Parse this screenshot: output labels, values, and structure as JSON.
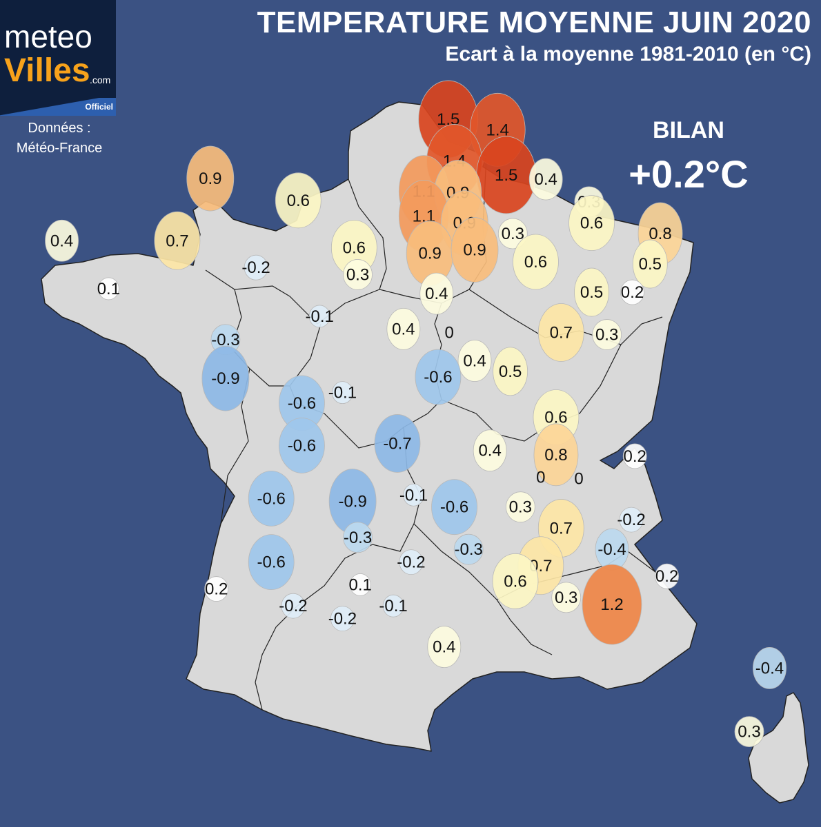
{
  "header": {
    "title": "TEMPERATURE MOYENNE JUIN 2020",
    "subtitle": "Ecart à la moyenne 1981-2010 (en °C)"
  },
  "logo": {
    "line1": "meteo",
    "line2": "Villes",
    "suffix": ".com",
    "badge": "Officiel"
  },
  "source": {
    "line1": "Données :",
    "line2": "Météo-France"
  },
  "summary": {
    "label": "BILAN",
    "value": "+0.2°C"
  },
  "colors": {
    "background": "#3b5283",
    "land": "#d9d9d9",
    "border": "#222222",
    "scale": [
      {
        "min": -1.0,
        "color": "#8db9e6"
      },
      {
        "min": -0.65,
        "color": "#9ec7ec"
      },
      {
        "min": -0.45,
        "color": "#bcd9ef"
      },
      {
        "min": -0.25,
        "color": "#e0eef8"
      },
      {
        "min": -0.05,
        "color": "#ffffff"
      },
      {
        "min": 0.25,
        "color": "#fdfce0"
      },
      {
        "min": 0.45,
        "color": "#fcf6c4"
      },
      {
        "min": 0.65,
        "color": "#fde6a6"
      },
      {
        "min": 0.75,
        "color": "#fcd597"
      },
      {
        "min": 0.85,
        "color": "#f9bd7c"
      },
      {
        "min": 1.05,
        "color": "#f39a5c"
      },
      {
        "min": 1.15,
        "color": "#ef8647"
      },
      {
        "min": 1.35,
        "color": "#e2572a"
      },
      {
        "min": 1.45,
        "color": "#d9441e"
      }
    ]
  },
  "stations": [
    {
      "lon": 3.08,
      "lat": 50.57,
      "value": 1.5
    },
    {
      "lon": 4.05,
      "lat": 50.42,
      "value": 1.4
    },
    {
      "lon": 3.2,
      "lat": 49.98,
      "value": 1.4
    },
    {
      "lon": 4.22,
      "lat": 49.78,
      "value": 1.5
    },
    {
      "lon": -1.6,
      "lat": 49.73,
      "value": 0.9
    },
    {
      "lon": 5.0,
      "lat": 49.72,
      "value": 0.4
    },
    {
      "lon": 2.6,
      "lat": 49.55,
      "value": 1.1
    },
    {
      "lon": 3.27,
      "lat": 49.53,
      "value": 0.9
    },
    {
      "lon": 0.13,
      "lat": 49.42,
      "value": 0.6
    },
    {
      "lon": 5.85,
      "lat": 49.4,
      "value": 0.3
    },
    {
      "lon": 2.6,
      "lat": 49.2,
      "value": 1.1
    },
    {
      "lon": 3.4,
      "lat": 49.1,
      "value": 0.9
    },
    {
      "lon": 5.9,
      "lat": 49.1,
      "value": 0.6
    },
    {
      "lon": -4.52,
      "lat": 48.85,
      "value": 0.4
    },
    {
      "lon": -2.25,
      "lat": 48.85,
      "value": 0.7
    },
    {
      "lon": 4.35,
      "lat": 48.95,
      "value": 0.3
    },
    {
      "lon": 7.25,
      "lat": 48.95,
      "value": 0.8
    },
    {
      "lon": 1.23,
      "lat": 48.75,
      "value": 0.6
    },
    {
      "lon": 2.72,
      "lat": 48.67,
      "value": 0.9
    },
    {
      "lon": 3.6,
      "lat": 48.72,
      "value": 0.9
    },
    {
      "lon": -0.7,
      "lat": 48.47,
      "value": -0.2
    },
    {
      "lon": 4.8,
      "lat": 48.55,
      "value": 0.6
    },
    {
      "lon": 7.05,
      "lat": 48.52,
      "value": 0.5
    },
    {
      "lon": 1.3,
      "lat": 48.37,
      "value": 0.3
    },
    {
      "lon": -3.6,
      "lat": 48.17,
      "value": 0.1
    },
    {
      "lon": 2.85,
      "lat": 48.1,
      "value": 0.4
    },
    {
      "lon": 5.9,
      "lat": 48.12,
      "value": 0.5
    },
    {
      "lon": 6.7,
      "lat": 48.12,
      "value": 0.2
    },
    {
      "lon": 0.55,
      "lat": 47.78,
      "value": -0.1
    },
    {
      "lon": 2.2,
      "lat": 47.6,
      "value": 0.4
    },
    {
      "lon": 5.3,
      "lat": 47.55,
      "value": 0.7
    },
    {
      "lon": 6.2,
      "lat": 47.52,
      "value": 0.3
    },
    {
      "lon": 3.1,
      "lat": 47.55,
      "value": 0.0
    },
    {
      "lon": -1.3,
      "lat": 47.45,
      "value": -0.3
    },
    {
      "lon": 3.6,
      "lat": 47.15,
      "value": 0.4
    },
    {
      "lon": 4.3,
      "lat": 47.0,
      "value": 0.5
    },
    {
      "lon": 2.88,
      "lat": 46.92,
      "value": -0.6
    },
    {
      "lon": -1.3,
      "lat": 46.9,
      "value": -0.9
    },
    {
      "lon": 1.0,
      "lat": 46.7,
      "value": -0.1
    },
    {
      "lon": 0.2,
      "lat": 46.55,
      "value": -0.6
    },
    {
      "lon": 5.2,
      "lat": 46.35,
      "value": 0.6
    },
    {
      "lon": 2.08,
      "lat": 45.98,
      "value": -0.7
    },
    {
      "lon": 3.9,
      "lat": 45.88,
      "value": 0.4
    },
    {
      "lon": 0.2,
      "lat": 45.95,
      "value": -0.6
    },
    {
      "lon": 5.2,
      "lat": 45.82,
      "value": 0.8
    },
    {
      "lon": 6.75,
      "lat": 45.8,
      "value": 0.2
    },
    {
      "lon": 4.9,
      "lat": 45.5,
      "value": 0.0
    },
    {
      "lon": 5.65,
      "lat": 45.48,
      "value": 0.0
    },
    {
      "lon": 2.4,
      "lat": 45.25,
      "value": -0.1
    },
    {
      "lon": 4.5,
      "lat": 45.08,
      "value": 0.3
    },
    {
      "lon": -0.4,
      "lat": 45.2,
      "value": -0.6
    },
    {
      "lon": 1.2,
      "lat": 45.16,
      "value": -0.9
    },
    {
      "lon": 3.2,
      "lat": 45.08,
      "value": -0.6
    },
    {
      "lon": 6.68,
      "lat": 44.9,
      "value": -0.2
    },
    {
      "lon": 5.3,
      "lat": 44.78,
      "value": 0.7
    },
    {
      "lon": 1.3,
      "lat": 44.65,
      "value": -0.3
    },
    {
      "lon": 6.3,
      "lat": 44.48,
      "value": -0.4
    },
    {
      "lon": 3.48,
      "lat": 44.48,
      "value": -0.3
    },
    {
      "lon": -0.4,
      "lat": 44.3,
      "value": -0.6
    },
    {
      "lon": 2.35,
      "lat": 44.3,
      "value": -0.2
    },
    {
      "lon": 4.9,
      "lat": 44.25,
      "value": 0.7
    },
    {
      "lon": 7.38,
      "lat": 44.1,
      "value": 0.2
    },
    {
      "lon": 4.4,
      "lat": 44.03,
      "value": 0.6
    },
    {
      "lon": 1.35,
      "lat": 43.98,
      "value": 0.1
    },
    {
      "lon": -1.48,
      "lat": 43.92,
      "value": 0.2
    },
    {
      "lon": 5.4,
      "lat": 43.8,
      "value": 0.3
    },
    {
      "lon": 6.3,
      "lat": 43.7,
      "value": 1.2
    },
    {
      "lon": 0.03,
      "lat": 43.68,
      "value": -0.2
    },
    {
      "lon": 2.0,
      "lat": 43.68,
      "value": -0.1
    },
    {
      "lon": 1.0,
      "lat": 43.5,
      "value": -0.2
    },
    {
      "lon": 3.0,
      "lat": 43.1,
      "value": 0.4
    },
    {
      "lon": 9.4,
      "lat": 42.8,
      "value": -0.4
    },
    {
      "lon": 9.0,
      "lat": 41.9,
      "value": 0.3
    }
  ]
}
